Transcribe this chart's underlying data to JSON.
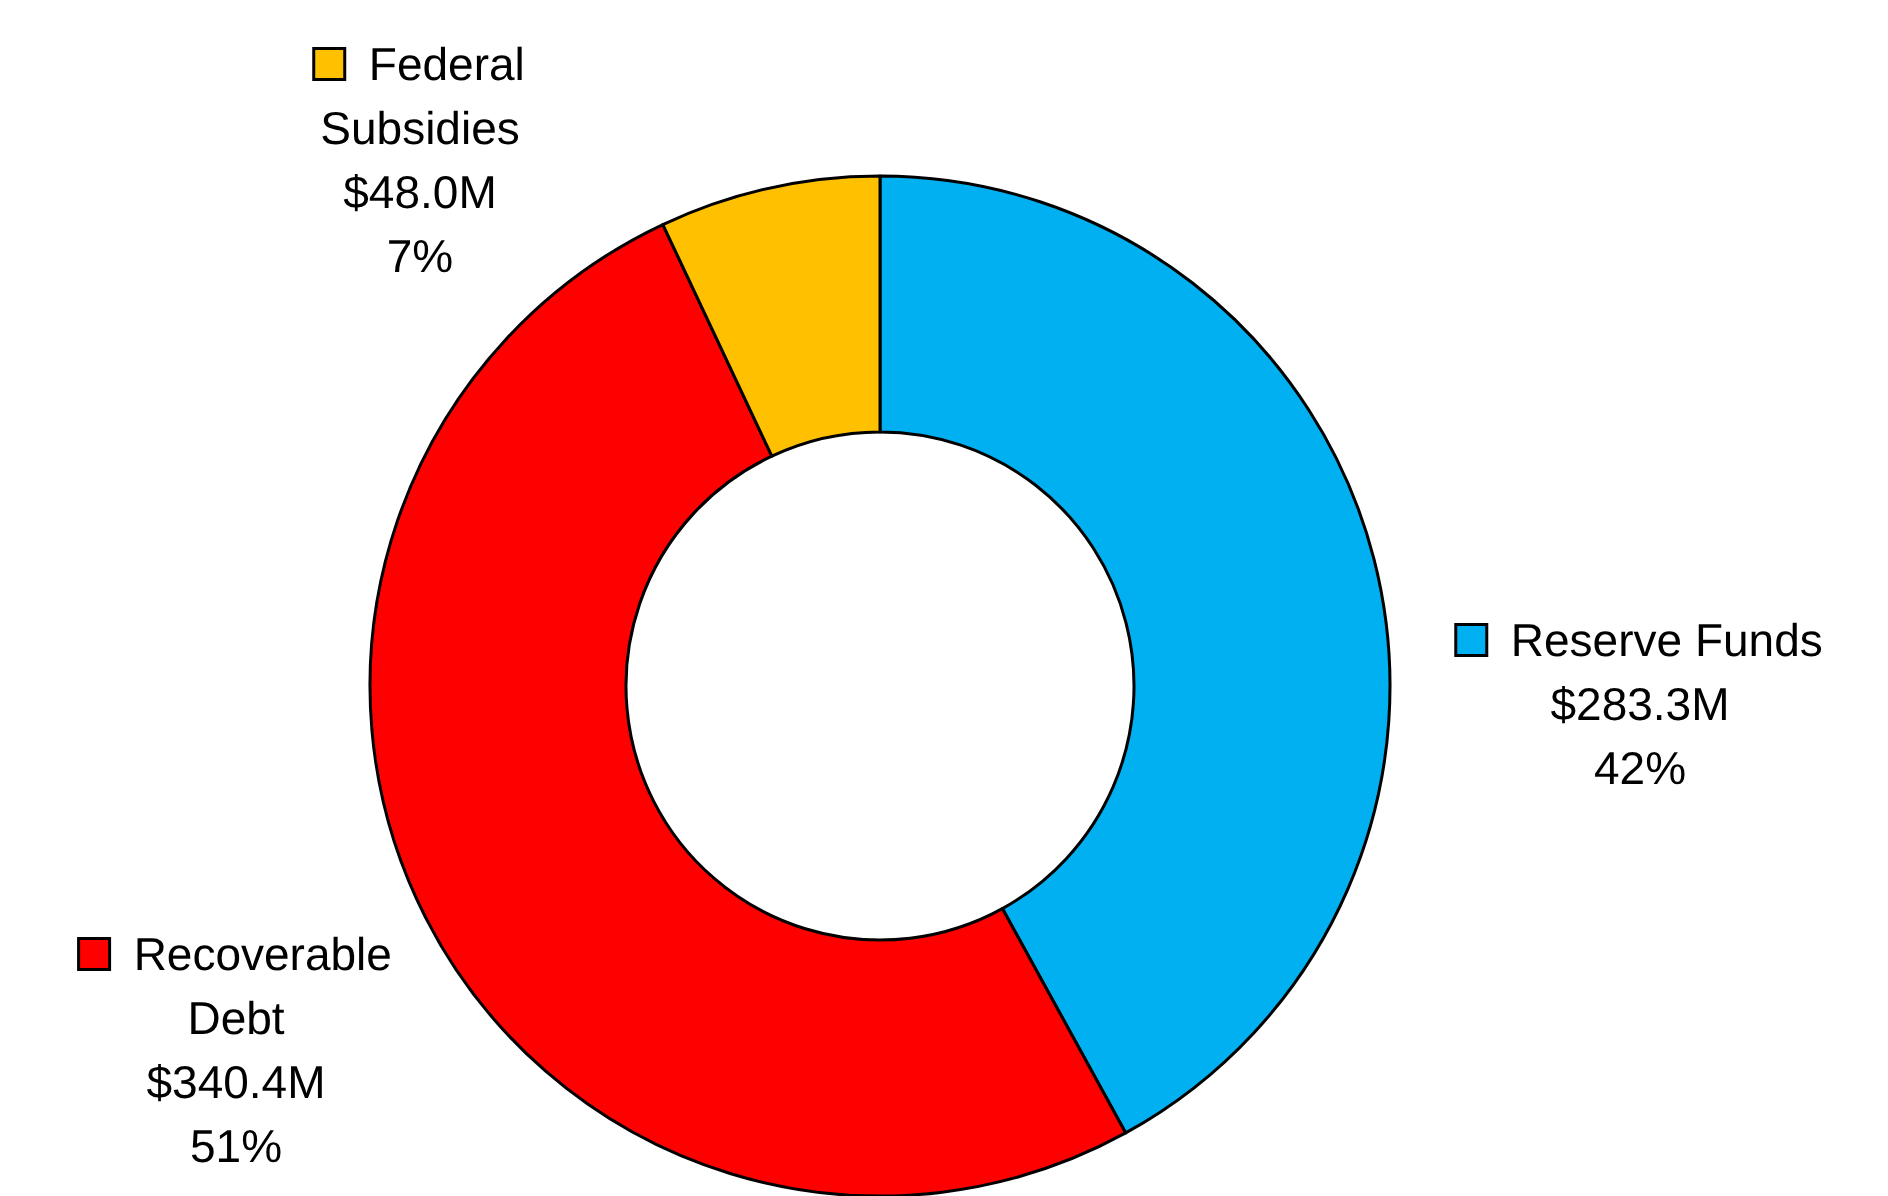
{
  "chart_data": {
    "type": "donut",
    "categories": [
      "Reserve Funds",
      "Recoverable Debt",
      "Federal Subsidies"
    ],
    "values": [
      42,
      51,
      7
    ],
    "colors": [
      "#00b0f0",
      "#ff0000",
      "#ffc000"
    ],
    "value_labels": [
      "$283.3M\n42%",
      "$340.4M\n51%",
      "$48.0M\n7%"
    ],
    "legend": "right"
  }
}
